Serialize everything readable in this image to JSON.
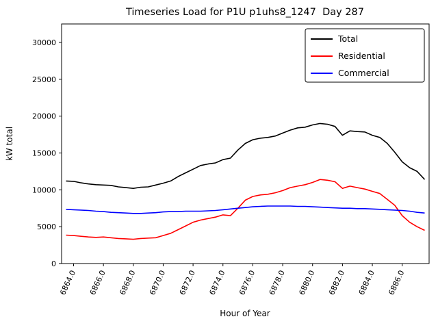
{
  "chart_data": {
    "type": "line",
    "title": "Timeseries Load for P1U p1uhs8_1247  Day 287",
    "xlabel": "Hour of Year",
    "ylabel": "kW total",
    "xlim": [
      6863.2,
      6887.8
    ],
    "ylim": [
      0,
      32500
    ],
    "xticks": [
      6864,
      6866,
      6868,
      6870,
      6872,
      6874,
      6876,
      6878,
      6880,
      6882,
      6884,
      6886
    ],
    "xtick_labels": [
      "6864.0",
      "6866.0",
      "6868.0",
      "6870.0",
      "6872.0",
      "6874.0",
      "6876.0",
      "6878.0",
      "6880.0",
      "6882.0",
      "6884.0",
      "6886.0"
    ],
    "yticks": [
      0,
      5000,
      10000,
      15000,
      20000,
      25000,
      30000
    ],
    "ytick_labels": [
      "0",
      "5000",
      "10000",
      "15000",
      "20000",
      "25000",
      "30000"
    ],
    "grid": false,
    "legend_position": "upper right",
    "x": [
      6863.5,
      6864.0,
      6864.5,
      6865.0,
      6865.5,
      6866.0,
      6866.5,
      6867.0,
      6867.5,
      6868.0,
      6868.5,
      6869.0,
      6869.5,
      6870.0,
      6870.5,
      6871.0,
      6871.5,
      6872.0,
      6872.5,
      6873.0,
      6873.5,
      6874.0,
      6874.5,
      6875.0,
      6875.5,
      6876.0,
      6876.5,
      6877.0,
      6877.5,
      6878.0,
      6878.5,
      6879.0,
      6879.5,
      6880.0,
      6880.5,
      6881.0,
      6881.5,
      6882.0,
      6882.5,
      6883.0,
      6883.5,
      6884.0,
      6884.5,
      6885.0,
      6885.5,
      6886.0,
      6886.5,
      6887.0,
      6887.5
    ],
    "series": [
      {
        "name": "Total",
        "color": "#000000",
        "values": [
          11200,
          11150,
          10950,
          10800,
          10700,
          10650,
          10600,
          10400,
          10300,
          10200,
          10350,
          10400,
          10650,
          10900,
          11200,
          11800,
          12300,
          12800,
          13300,
          13500,
          13650,
          14100,
          14300,
          15400,
          16300,
          16800,
          17000,
          17100,
          17300,
          17700,
          18100,
          18400,
          18500,
          18800,
          19000,
          18900,
          18600,
          17400,
          18000,
          17900,
          17850,
          17400,
          17100,
          16300,
          15100,
          13800,
          13000,
          12500,
          11400
        ]
      },
      {
        "name": "Residential",
        "color": "#ff0000",
        "values": [
          3850,
          3800,
          3700,
          3600,
          3550,
          3600,
          3500,
          3400,
          3350,
          3300,
          3400,
          3450,
          3500,
          3800,
          4100,
          4600,
          5100,
          5600,
          5900,
          6100,
          6300,
          6600,
          6500,
          7500,
          8600,
          9100,
          9300,
          9400,
          9600,
          9900,
          10300,
          10500,
          10700,
          11000,
          11400,
          11300,
          11100,
          10200,
          10500,
          10300,
          10100,
          9800,
          9500,
          8700,
          7900,
          6500,
          5600,
          5000,
          4500
        ]
      },
      {
        "name": "Commercial",
        "color": "#0000ff",
        "values": [
          7350,
          7300,
          7250,
          7200,
          7100,
          7050,
          6950,
          6900,
          6850,
          6800,
          6800,
          6850,
          6900,
          7000,
          7050,
          7050,
          7100,
          7100,
          7100,
          7150,
          7200,
          7300,
          7400,
          7500,
          7600,
          7700,
          7750,
          7800,
          7800,
          7800,
          7800,
          7750,
          7750,
          7700,
          7650,
          7600,
          7550,
          7500,
          7500,
          7450,
          7450,
          7400,
          7350,
          7300,
          7250,
          7200,
          7100,
          6950,
          6850
        ]
      }
    ]
  }
}
